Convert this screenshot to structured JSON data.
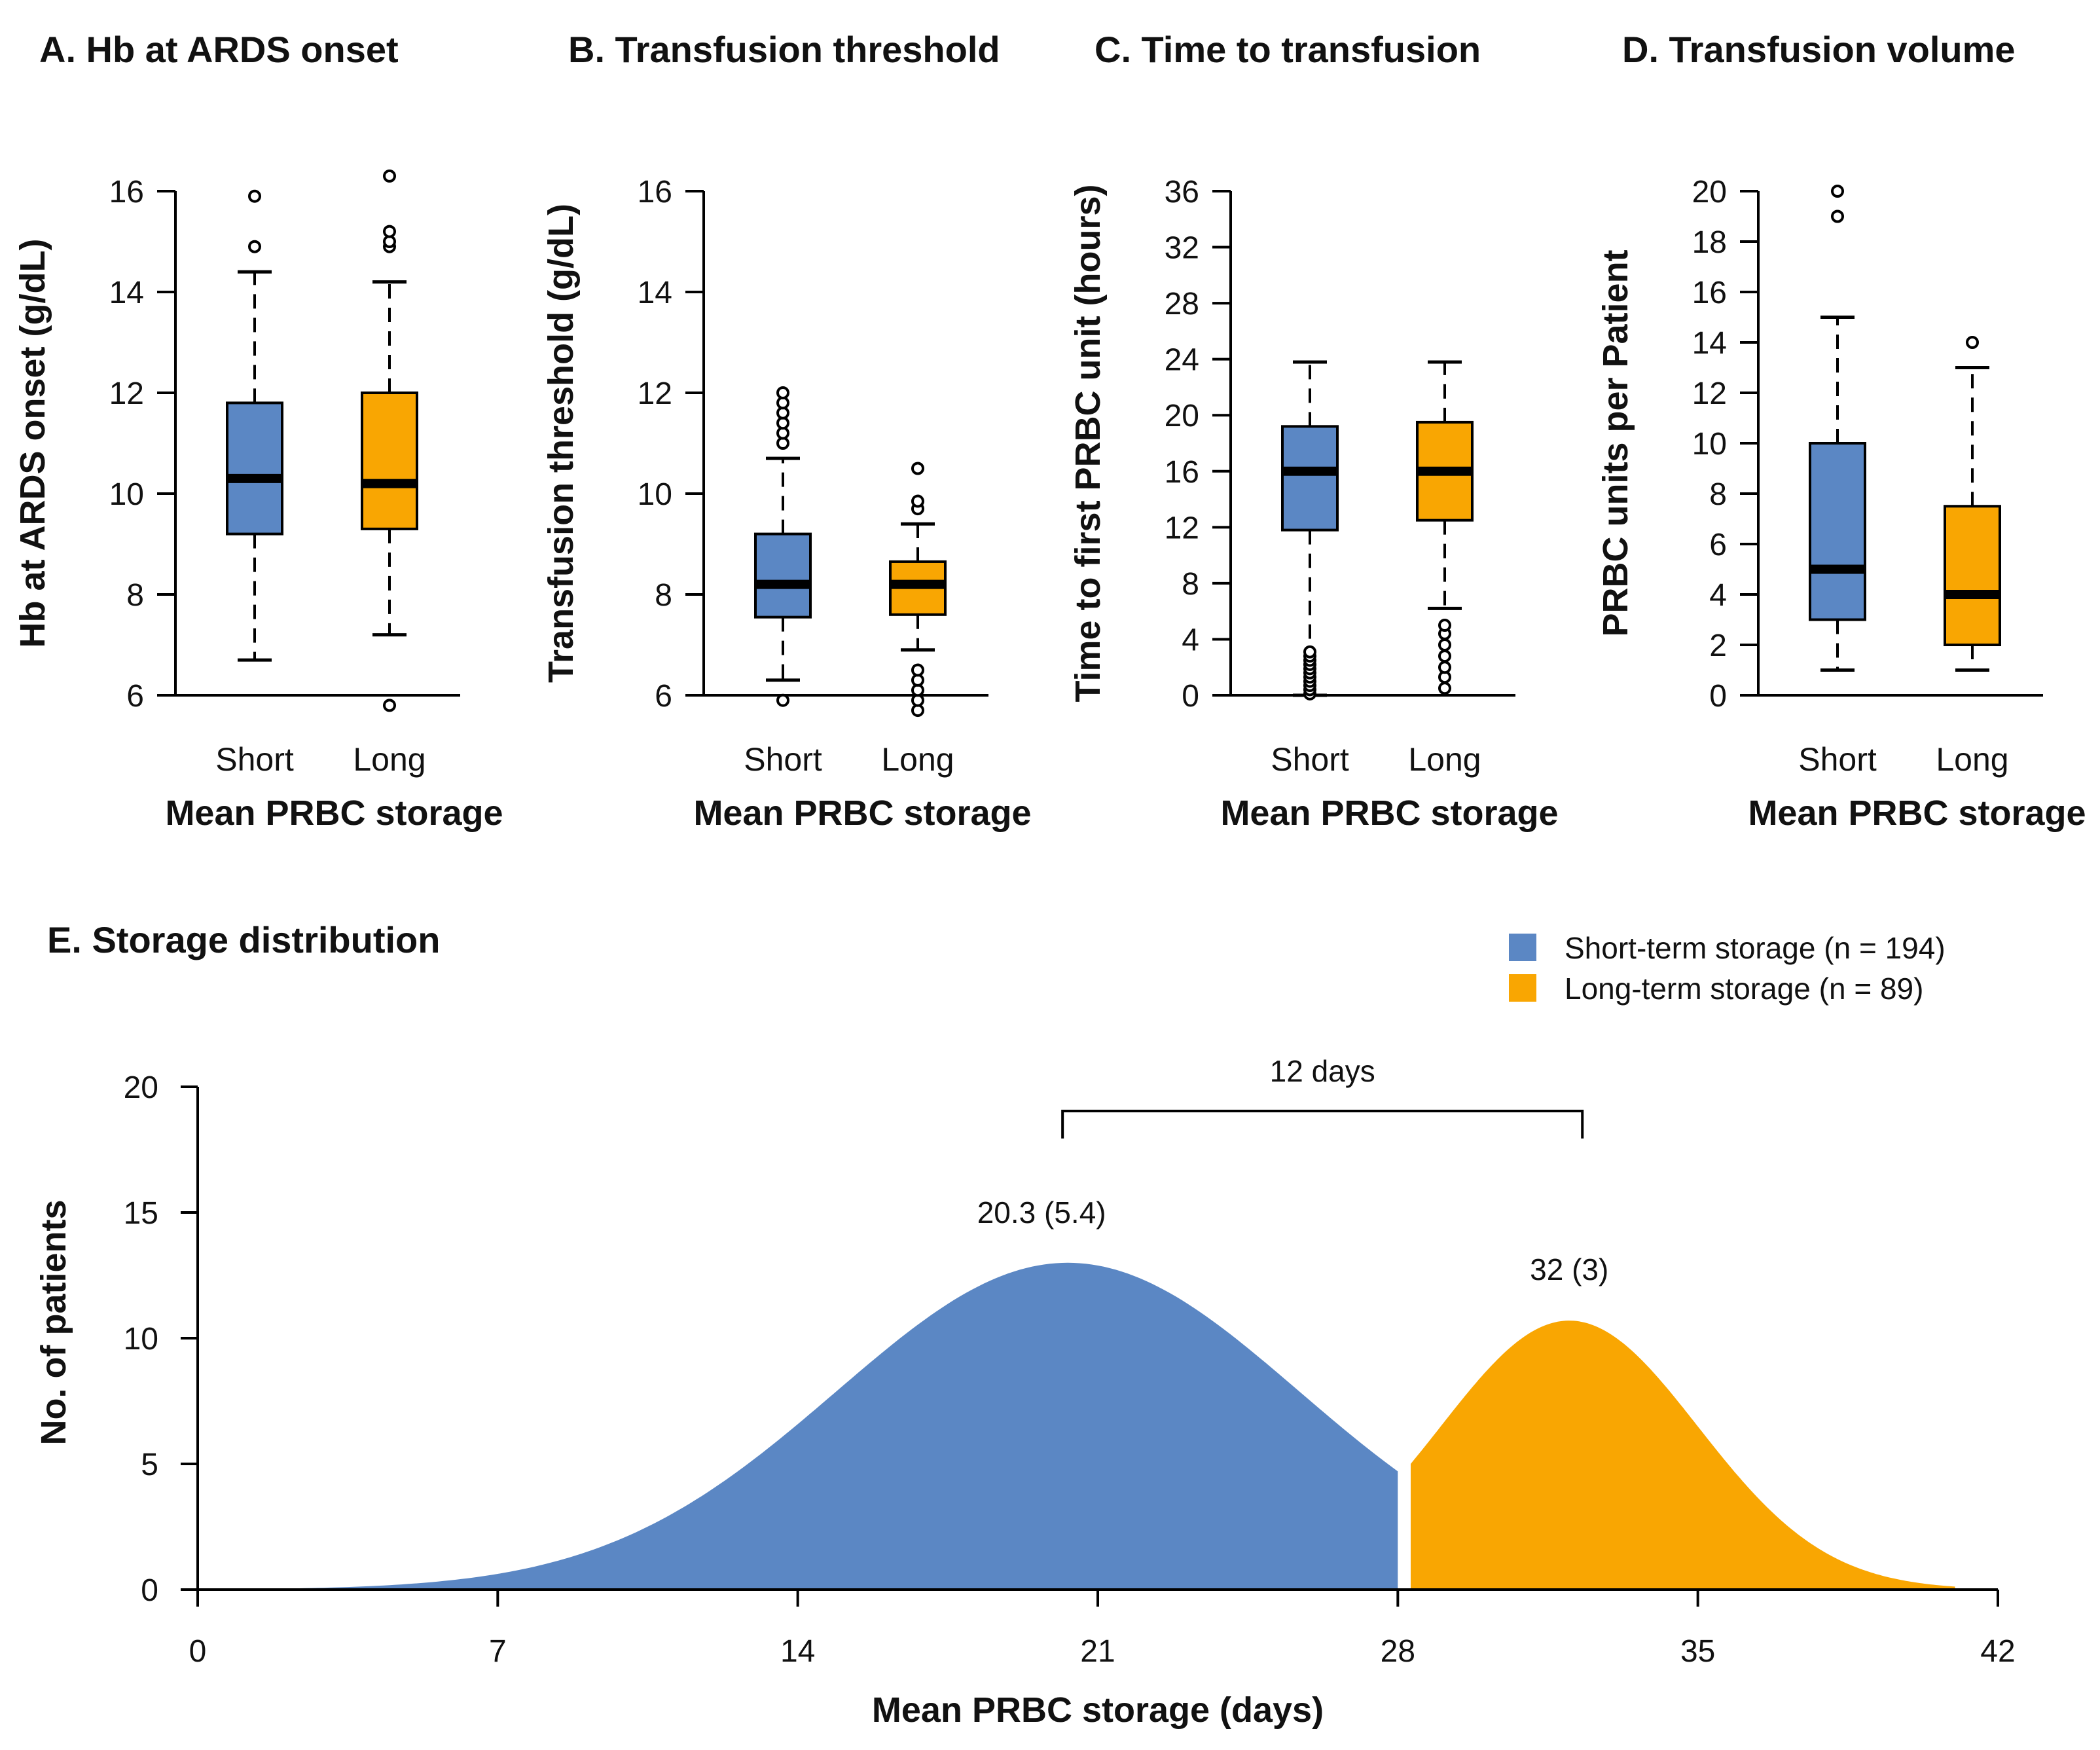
{
  "colors": {
    "short": "#5b87c4",
    "long": "#f9a602"
  },
  "chart_data": [
    {
      "type": "box",
      "title": "A. Hb at ARDS onset",
      "ylabel": "Hb at ARDS onset (g/dL)",
      "xlabel": "Mean PRBC storage",
      "ylim": [
        6,
        16
      ],
      "yticks": [
        6,
        8,
        10,
        12,
        14,
        16
      ],
      "categories": [
        "Short",
        "Long"
      ],
      "boxes": [
        {
          "name": "Short",
          "q1": 9.2,
          "median": 10.3,
          "q3": 11.8,
          "whisker_low": 6.7,
          "whisker_high": 14.4,
          "outliers": [
            14.9,
            15.9
          ]
        },
        {
          "name": "Long",
          "q1": 9.3,
          "median": 10.2,
          "q3": 12.0,
          "whisker_low": 7.2,
          "whisker_high": 14.2,
          "outliers": [
            5.8,
            14.9,
            15.0,
            15.2,
            16.3
          ]
        }
      ]
    },
    {
      "type": "box",
      "title": "B. Transfusion threshold",
      "ylabel": "Transfusion threshold (g/dL)",
      "xlabel": "Mean PRBC storage",
      "ylim": [
        6,
        16
      ],
      "yticks": [
        6,
        8,
        10,
        12,
        14,
        16
      ],
      "categories": [
        "Short",
        "Long"
      ],
      "boxes": [
        {
          "name": "Short",
          "q1": 7.55,
          "median": 8.2,
          "q3": 9.2,
          "whisker_low": 6.3,
          "whisker_high": 10.7,
          "outliers": [
            5.9,
            11.0,
            11.2,
            11.4,
            11.6,
            11.8,
            12.0
          ]
        },
        {
          "name": "Long",
          "q1": 7.6,
          "median": 8.2,
          "q3": 8.65,
          "whisker_low": 6.9,
          "whisker_high": 9.4,
          "outliers": [
            5.7,
            5.9,
            6.1,
            6.3,
            6.5,
            9.7,
            9.85,
            10.5
          ]
        }
      ]
    },
    {
      "type": "box",
      "title": "C. Time to transfusion",
      "ylabel": "Time to first PRBC unit (hours)",
      "xlabel": "Mean PRBC storage",
      "ylim": [
        0,
        36
      ],
      "yticks": [
        0,
        4,
        8,
        12,
        16,
        20,
        24,
        28,
        32,
        36
      ],
      "categories": [
        "Short",
        "Long"
      ],
      "boxes": [
        {
          "name": "Short",
          "q1": 11.8,
          "median": 16.0,
          "q3": 19.2,
          "whisker_low": 0,
          "whisker_high": 23.8,
          "outliers": [
            0.1,
            0.4,
            0.7,
            1.0,
            1.3,
            1.6,
            1.9,
            2.2,
            2.5,
            2.8,
            3.1
          ]
        },
        {
          "name": "Long",
          "q1": 12.5,
          "median": 16.0,
          "q3": 19.5,
          "whisker_low": 6.2,
          "whisker_high": 23.8,
          "outliers": [
            0.5,
            1.3,
            2.0,
            2.8,
            3.6,
            4.4,
            5.0
          ]
        }
      ]
    },
    {
      "type": "box",
      "title": "D. Transfusion volume",
      "ylabel": "PRBC units per Patient",
      "xlabel": "Mean PRBC storage",
      "ylim": [
        0,
        20
      ],
      "yticks": [
        0,
        2,
        4,
        6,
        8,
        10,
        12,
        14,
        16,
        18,
        20
      ],
      "categories": [
        "Short",
        "Long"
      ],
      "boxes": [
        {
          "name": "Short",
          "q1": 3.0,
          "median": 5.0,
          "q3": 10.0,
          "whisker_low": 1.0,
          "whisker_high": 15.0,
          "outliers": [
            19.0,
            20.0
          ]
        },
        {
          "name": "Long",
          "q1": 2.0,
          "median": 4.0,
          "q3": 7.5,
          "whisker_low": 1.0,
          "whisker_high": 13.0,
          "outliers": [
            14.0
          ]
        }
      ]
    },
    {
      "type": "area",
      "title": "E. Storage distribution",
      "xlabel": "Mean PRBC storage (days)",
      "ylabel": "No. of patients",
      "xlim": [
        0,
        42
      ],
      "ylim": [
        0,
        20
      ],
      "xticks": [
        0,
        7,
        14,
        21,
        28,
        35,
        42
      ],
      "yticks": [
        0,
        5,
        10,
        15,
        20
      ],
      "series": [
        {
          "name": "Short-term storage (n = 194)",
          "mean": 20.3,
          "sd": 5.4,
          "peak": 13.0,
          "range": [
            0,
            28.0
          ],
          "label": "20.3 (5.4)"
        },
        {
          "name": "Long-term storage (n = 89)",
          "mean": 32,
          "sd": 3,
          "peak": 10.7,
          "range": [
            28.3,
            41.0
          ],
          "label": "32 (3)"
        }
      ],
      "bracket": {
        "from": 20.3,
        "to": 32,
        "label": "12 days"
      }
    }
  ]
}
